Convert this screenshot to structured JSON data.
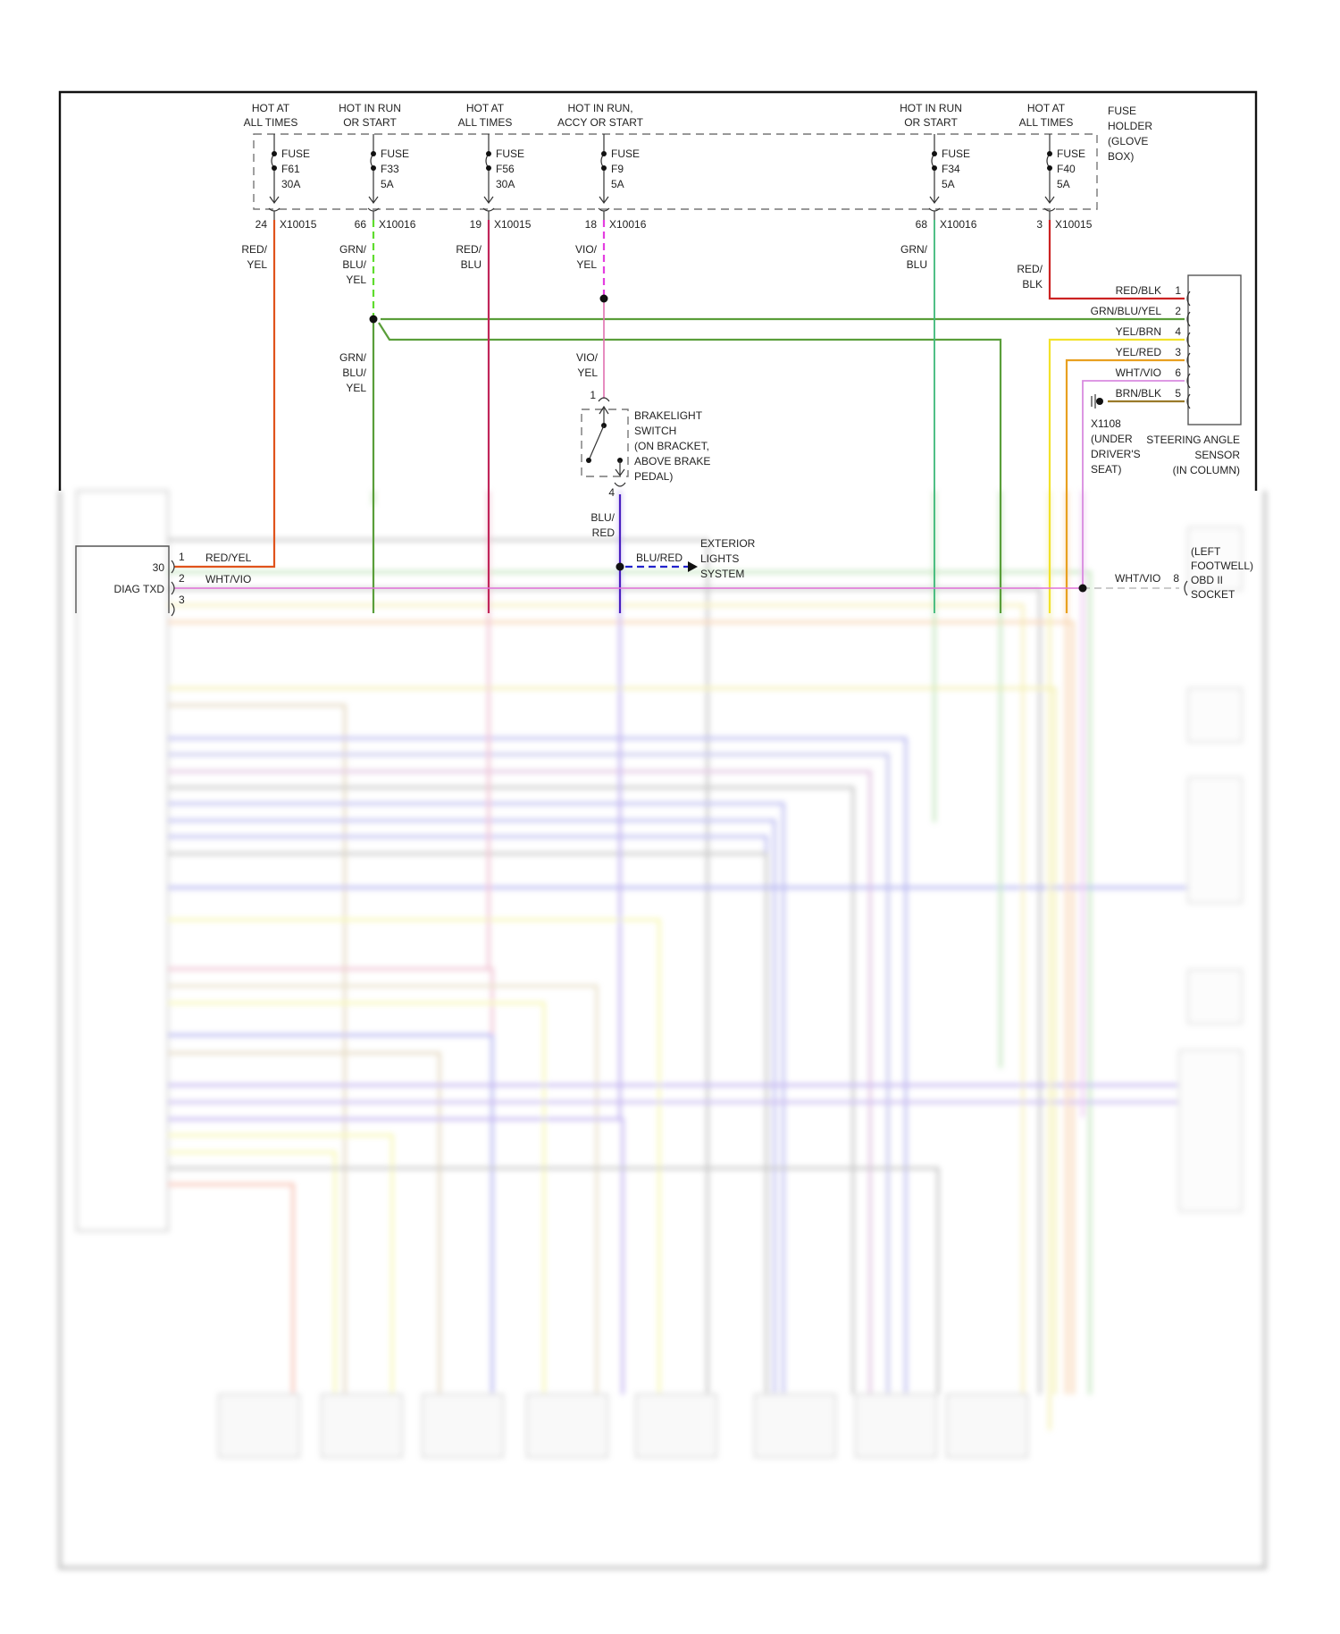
{
  "fuse_holder": {
    "label": [
      "FUSE",
      "HOLDER",
      "(GLOVE",
      "BOX)"
    ],
    "fuses": [
      {
        "status": [
          "HOT AT",
          "ALL TIMES"
        ],
        "name": "F61",
        "rating": "30A",
        "pin": "24",
        "connector": "X10015",
        "wire": [
          "RED/",
          "YEL"
        ],
        "color": "#e0531c"
      },
      {
        "status": [
          "HOT IN RUN",
          "OR START"
        ],
        "name": "F33",
        "rating": "5A",
        "pin": "66",
        "connector": "X10016",
        "wire": [
          "GRN/",
          "BLU/",
          "YEL"
        ],
        "color": "#5fdc2e"
      },
      {
        "status": [
          "HOT AT",
          "ALL TIMES"
        ],
        "name": "F56",
        "rating": "30A",
        "pin": "19",
        "connector": "X10015",
        "wire": [
          "RED/",
          "BLU"
        ],
        "color": "#c0265a"
      },
      {
        "status": [
          "HOT IN RUN,",
          "ACCY OR START"
        ],
        "name": "F9",
        "rating": "5A",
        "pin": "18",
        "connector": "X10016",
        "wire": [
          "VIO/",
          "YEL"
        ],
        "color": "#e43ee0"
      },
      {
        "status": [
          "HOT IN RUN",
          "OR START"
        ],
        "name": "F34",
        "rating": "5A",
        "pin": "68",
        "connector": "X10016",
        "wire": [
          "GRN/",
          "BLU"
        ],
        "color": "#3cb878"
      },
      {
        "status": [
          "HOT AT",
          "ALL TIMES"
        ],
        "name": "F40",
        "rating": "5A",
        "pin": "3",
        "connector": "X10015",
        "wire": [
          "RED/",
          "BLK"
        ],
        "color": "#cc2222"
      }
    ],
    "fuse_word": "FUSE"
  },
  "splice_labels": {
    "grn_blu_yel": [
      "GRN/",
      "BLU/",
      "YEL"
    ],
    "vio_yel": [
      "VIO/",
      "YEL"
    ]
  },
  "brakelight_switch": {
    "label": [
      "BRAKELIGHT",
      "SWITCH",
      "(ON BRACKET,",
      "ABOVE BRAKE",
      "PEDAL)"
    ],
    "pin_in": "1",
    "pin_out": "4",
    "out_wire": [
      "BLU/",
      "RED"
    ],
    "branch_wire": "BLU/RED",
    "out_color": "#4a1fc0"
  },
  "exterior_lights": [
    "EXTERIOR",
    "LIGHTS",
    "SYSTEM"
  ],
  "module": {
    "pins": [
      {
        "num": "1",
        "cavity": "30",
        "wire": "RED/YEL"
      },
      {
        "num": "2",
        "cavity": "DIAG TXD",
        "wire": "WHT/VIO"
      },
      {
        "num": "3"
      }
    ]
  },
  "steering_angle_sensor": {
    "label": [
      "STEERING ANGLE",
      "SENSOR",
      "(IN COLUMN)"
    ],
    "pins": [
      {
        "wire": "RED/BLK",
        "num": "1",
        "color": "#cc2222"
      },
      {
        "wire": "GRN/BLU/YEL",
        "num": "2",
        "color": "#5a9e3a"
      },
      {
        "wire": "YEL/BRN",
        "num": "4",
        "color": "#f2e22a"
      },
      {
        "wire": "YEL/RED",
        "num": "3",
        "color": "#e8a020"
      },
      {
        "wire": "WHT/VIO",
        "num": "6",
        "color": "#d98be0"
      },
      {
        "wire": "BRN/BLK",
        "num": "5",
        "color": "#9a7a2a"
      }
    ]
  },
  "ground": {
    "label": [
      "X1108",
      "(UNDER",
      "DRIVER'S",
      "SEAT)"
    ]
  },
  "obd_socket": {
    "wire": "WHT/VIO",
    "pin": "8",
    "label": [
      "(LEFT",
      "FOOTWELL)",
      "OBD II",
      "SOCKET"
    ]
  },
  "colors": {
    "green": "#5a9e3a",
    "pink": "#e070d8",
    "frame": "#111111"
  }
}
